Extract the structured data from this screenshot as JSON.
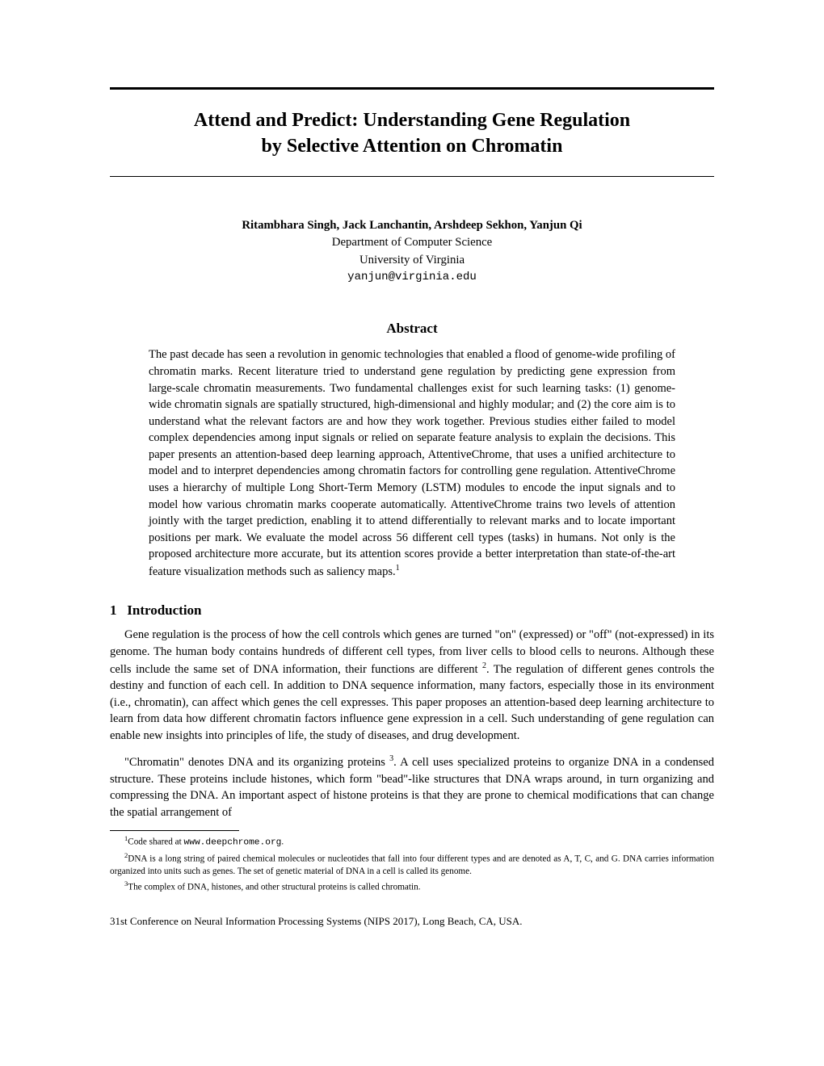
{
  "title_line1": "Attend and Predict: Understanding Gene Regulation",
  "title_line2": "by Selective Attention on Chromatin",
  "authors": "Ritambhara Singh, Jack Lanchantin, Arshdeep Sekhon, Yanjun Qi",
  "department": "Department of Computer Science",
  "university": "University of Virginia",
  "email": "yanjun@virginia.edu",
  "abstract_heading": "Abstract",
  "abstract_body": "The past decade has seen a revolution in genomic technologies that enabled a flood of genome-wide profiling of chromatin marks. Recent literature tried to understand gene regulation by predicting gene expression from large-scale chromatin measurements. Two fundamental challenges exist for such learning tasks: (1) genome-wide chromatin signals are spatially structured, high-dimensional and highly modular; and (2) the core aim is to understand what the relevant factors are and how they work together. Previous studies either failed to model complex dependencies among input signals or relied on separate feature analysis to explain the decisions. This paper presents an attention-based deep learning approach, AttentiveChrome, that uses a unified architecture to model and to interpret dependencies among chromatin factors for controlling gene regulation. AttentiveChrome uses a hierarchy of multiple Long Short-Term Memory (LSTM) modules to encode the input signals and to model how various chromatin marks cooperate automatically. AttentiveChrome trains two levels of attention jointly with the target prediction, enabling it to attend differentially to relevant marks and to locate important positions per mark. We evaluate the model across 56 different cell types (tasks) in humans. Not only is the proposed architecture more accurate, but its attention scores provide a better interpretation than state-of-the-art feature visualization methods such as saliency maps.",
  "abstract_footref": "1",
  "section1_number": "1",
  "section1_title": "Introduction",
  "para1_a": "Gene regulation is the process of how the cell controls which genes are turned \"on\" (expressed) or \"off\" (not-expressed) in its genome. The human body contains hundreds of different cell types, from liver cells to blood cells to neurons. Although these cells include the same set of DNA information, their functions are different ",
  "para1_ref": "2",
  "para1_b": ". The regulation of different genes controls the destiny and function of each cell. In addition to DNA sequence information, many factors, especially those in its environment (i.e., chromatin), can affect which genes the cell expresses. This paper proposes an attention-based deep learning architecture to learn from data how different chromatin factors influence gene expression in a cell. Such understanding of gene regulation can enable new insights into principles of life, the study of diseases, and drug development.",
  "para2_a": "\"Chromatin\" denotes DNA and its organizing proteins ",
  "para2_ref": "3",
  "para2_b": ". A cell uses specialized proteins to organize DNA in a condensed structure. These proteins include histones, which form \"bead\"-like structures that DNA wraps around, in turn organizing and compressing the DNA. An important aspect of histone proteins is that they are prone to chemical modifications that can change the spatial arrangement of",
  "footnote1_num": "1",
  "footnote1_a": "Code shared at ",
  "footnote1_code": "www.deepchrome.org",
  "footnote1_b": ".",
  "footnote2_num": "2",
  "footnote2_text": "DNA is a long string of paired chemical molecules or nucleotides that fall into four different types and are denoted as A, T, C, and G. DNA carries information organized into units such as genes. The set of genetic material of DNA in a cell is called its genome.",
  "footnote3_num": "3",
  "footnote3_text": "The complex of DNA, histones, and other structural proteins is called chromatin.",
  "venue": "31st Conference on Neural Information Processing Systems (NIPS 2017), Long Beach, CA, USA."
}
